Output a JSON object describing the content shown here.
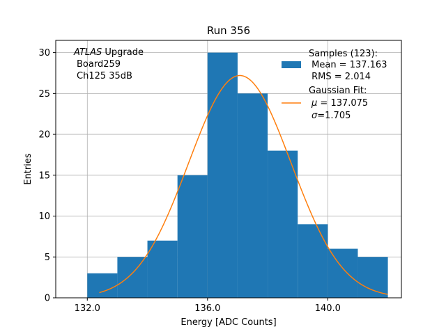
{
  "chart_data": {
    "type": "bar",
    "title": "Run 356",
    "xlabel": "Energy [ADC Counts]",
    "ylabel": "Entries",
    "xlim": [
      130.95,
      142.45
    ],
    "ylim": [
      0,
      31.5
    ],
    "xticks": [
      132.0,
      136.0,
      140.0
    ],
    "xtick_labels": [
      "132.0",
      "136.0",
      "140.0"
    ],
    "yticks": [
      0,
      5,
      10,
      15,
      20,
      25,
      30
    ],
    "ytick_labels": [
      "0",
      "5",
      "10",
      "15",
      "20",
      "25",
      "30"
    ],
    "grid": true,
    "bin_edges": [
      132.0,
      133.0,
      134.0,
      135.0,
      136.0,
      137.0,
      138.0,
      139.0,
      140.0,
      141.0,
      142.0
    ],
    "counts": [
      3,
      5,
      7,
      15,
      30,
      25,
      18,
      9,
      6,
      5
    ],
    "bar_color": "#1f77b4",
    "fit_color": "#ff7f0e",
    "fit": {
      "mu": 137.075,
      "sigma": 1.705,
      "amplitude": 27.2,
      "x_range": [
        132.4,
        142.0
      ]
    },
    "annotation": [
      "ATLAS",
      " Upgrade",
      "Board259",
      "Ch125 35dB"
    ],
    "legend": {
      "placement": "top-right",
      "samples_lines": [
        "Samples (123):",
        " Mean = 137.163",
        " RMS = 2.014"
      ],
      "fit_lines": [
        "Gaussian Fit:",
        " = 137.075",
        "=1.705"
      ],
      "fit_symbols": [
        "μ",
        "σ"
      ]
    }
  }
}
